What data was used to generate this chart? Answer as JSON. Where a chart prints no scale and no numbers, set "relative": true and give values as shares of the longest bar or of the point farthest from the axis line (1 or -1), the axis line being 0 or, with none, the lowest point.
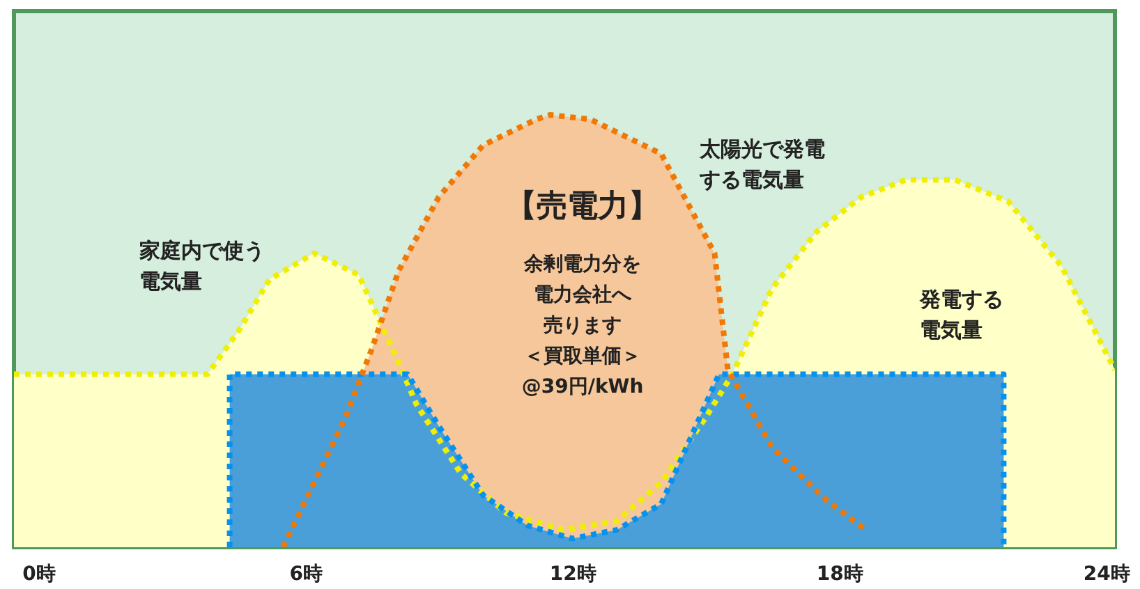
{
  "chart_data": {
    "type": "area",
    "relative": true,
    "line_style": "dotted",
    "xlim": [
      -0.55,
      24.2
    ],
    "xticks": [
      {
        "value": 0,
        "label": "0時"
      },
      {
        "value": 6,
        "label": "6時"
      },
      {
        "value": 12,
        "label": "12時"
      },
      {
        "value": 18,
        "label": "18時"
      },
      {
        "value": 24,
        "label": "24時"
      }
    ],
    "series": [
      {
        "name": "家庭内で使う電気量",
        "color": "#ffffc8",
        "x": [
          -0.55,
          3.8,
          4.5,
          5.2,
          6.2,
          7.2,
          8.0,
          8.5,
          9.5,
          10.5,
          11.8,
          13,
          14,
          15,
          15.6,
          16.5,
          17.5,
          18.5,
          19.5,
          20.6,
          21.8,
          23,
          24.2
        ],
        "values": [
          0.4,
          0.4,
          0.5,
          0.62,
          0.68,
          0.63,
          0.45,
          0.33,
          0.17,
          0.08,
          0.04,
          0.06,
          0.15,
          0.3,
          0.4,
          0.6,
          0.73,
          0.81,
          0.85,
          0.85,
          0.8,
          0.65,
          0.41
        ]
      },
      {
        "name": "太陽光で発電する電気量",
        "color": "#f6c79a",
        "x": [
          5.5,
          6.9,
          7.5,
          8.1,
          9.0,
          10.0,
          11.2,
          11.5,
          12.4,
          14.0,
          15.2,
          15.5,
          16.5,
          17.7,
          18.6
        ],
        "values": [
          0,
          0.3,
          0.46,
          0.64,
          0.81,
          0.93,
          0.99,
          1,
          0.99,
          0.91,
          0.68,
          0.41,
          0.23,
          0.11,
          0.04
        ]
      },
      {
        "name": "発電する電気量",
        "color": "#4a9fd8",
        "x": [
          4.3,
          4.3,
          8.3,
          9,
          10,
          11,
          12,
          13,
          14,
          15.3,
          21.7,
          21.7
        ],
        "values": [
          0,
          0.4,
          0.4,
          0.28,
          0.12,
          0.05,
          0.02,
          0.04,
          0.1,
          0.4,
          0.4,
          0
        ]
      }
    ],
    "annotations": [
      "【売電力】",
      "余剰電力分を",
      "電力会社へ",
      "売ります",
      "＜買取単価＞",
      "@39円/kWh"
    ]
  }
}
